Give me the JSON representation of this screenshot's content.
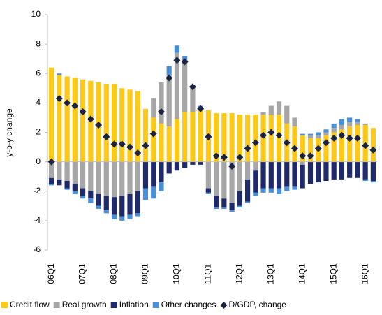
{
  "chart_data": {
    "type": "stacked-bar-line",
    "y_label": "y-o-y change",
    "categories": [
      "06Q1",
      null,
      null,
      null,
      "07Q1",
      null,
      null,
      null,
      "08Q1",
      null,
      null,
      null,
      "09Q1",
      null,
      null,
      null,
      "10Q1",
      null,
      null,
      null,
      "11Q1",
      null,
      null,
      null,
      "12Q1",
      null,
      null,
      null,
      "13Q1",
      null,
      null,
      null,
      "14Q1",
      null,
      null,
      null,
      "15Q1",
      null,
      null,
      null,
      "16Q1",
      null
    ],
    "series": [
      {
        "name": "Credit flow",
        "color": "#fcc917",
        "values": [
          6.4,
          5.9,
          5.8,
          5.7,
          5.6,
          5.5,
          5.4,
          5.3,
          5.3,
          5.0,
          4.9,
          4.8,
          3.6,
          3.0,
          2.6,
          2.4,
          2.9,
          3.4,
          3.4,
          3.5,
          3.5,
          3.3,
          3.3,
          3.3,
          3.2,
          3.2,
          3.2,
          3.2,
          3.2,
          3.2,
          2.6,
          2.4,
          1.8,
          1.6,
          1.6,
          1.8,
          2.0,
          2.2,
          2.4,
          2.5,
          2.5,
          2.3
        ]
      },
      {
        "name": "Real growth",
        "color": "#a6a6a6",
        "values": [
          -1.1,
          -1.2,
          -1.3,
          -1.5,
          -1.8,
          -2.0,
          -2.2,
          -2.3,
          -2.4,
          -2.3,
          -2.2,
          -2.0,
          0,
          1.3,
          2.8,
          3.5,
          4.5,
          3.5,
          1.7,
          0.2,
          -1.8,
          -2.3,
          -2.5,
          -2.8,
          -2.0,
          -1.2,
          -0.6,
          0.2,
          0.6,
          0.9,
          1.2,
          0.6,
          -0.2,
          0.2,
          0.2,
          0.2,
          0.3,
          0.3,
          0.3,
          0.2,
          0.1,
          0
        ]
      },
      {
        "name": "Inflation",
        "color": "#1f2a6b",
        "values": [
          -0.4,
          -0.4,
          -0.5,
          -0.5,
          -0.5,
          -0.5,
          -0.8,
          -1.0,
          -1.2,
          -1.4,
          -1.4,
          -1.5,
          -1.8,
          -1.7,
          -1.4,
          -0.8,
          -0.6,
          -0.4,
          -0.2,
          -0.2,
          -0.3,
          -0.8,
          -0.6,
          -0.5,
          -1.0,
          -1.5,
          -1.5,
          -1.8,
          -1.8,
          -1.8,
          -1.7,
          -1.7,
          -1.6,
          -1.5,
          -1.4,
          -1.3,
          -1.2,
          -1.2,
          -1.1,
          -1.1,
          -1.2,
          -1.3
        ]
      },
      {
        "name": "Other changes",
        "color": "#4a90d9",
        "values": [
          -0.1,
          0.1,
          -0.1,
          -0.2,
          -0.2,
          -0.3,
          -0.2,
          -0.2,
          -0.3,
          -0.3,
          -0.3,
          -0.2,
          -0.8,
          -0.8,
          -0.6,
          0.6,
          0.5,
          0.3,
          0.1,
          0.1,
          -0.1,
          -0.1,
          -0.1,
          -0.1,
          -0.1,
          -0.1,
          -0.2,
          -0.3,
          -0.3,
          -0.4,
          -0.3,
          -0.2,
          0.1,
          0.1,
          0.2,
          0.2,
          0.3,
          0.4,
          0.3,
          0.2,
          -0.1,
          -0.1
        ]
      },
      {
        "name": "D/GDP, change",
        "color": "#1a2340",
        "kind": "line",
        "values": [
          0,
          4.3,
          4.0,
          3.8,
          3.4,
          2.9,
          2.5,
          1.7,
          1.2,
          1.2,
          1.0,
          0.6,
          1.1,
          1.9,
          3.4,
          5.7,
          6.9,
          6.8,
          5.1,
          3.6,
          1.7,
          0.4,
          0.3,
          -0.3,
          0.3,
          0.9,
          1.3,
          1.8,
          2.0,
          1.8,
          1.3,
          0.9,
          0.4,
          0.4,
          0.9,
          1.3,
          1.6,
          1.8,
          1.6,
          1.6,
          1.1,
          0.8
        ]
      }
    ],
    "ylim": [
      -6,
      10
    ],
    "yticks": [
      -6,
      -4,
      -2,
      0,
      2,
      4,
      6,
      8,
      10
    ],
    "grid": false,
    "legend": "bottom"
  }
}
